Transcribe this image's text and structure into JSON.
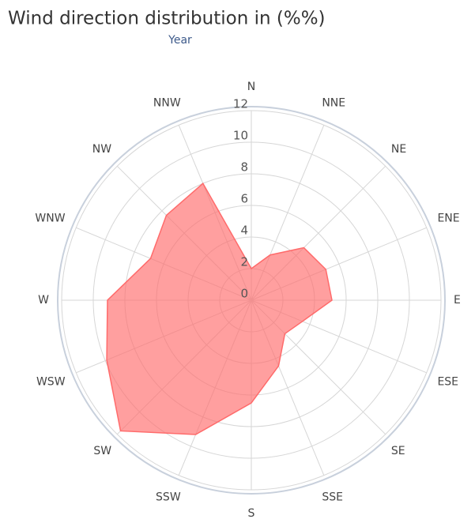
{
  "chart_data": {
    "type": "radar",
    "title": "Wind direction distribution in (%%)",
    "subtitle": "Year",
    "categories": [
      "N",
      "NNE",
      "NE",
      "ENE",
      "E",
      "ESE",
      "SE",
      "SSE",
      "S",
      "SSW",
      "SW",
      "WSW",
      "W",
      "WNW",
      "NW",
      "NNW"
    ],
    "series": [
      {
        "name": "Year",
        "color": "#ff6b6b",
        "values": [
          2,
          3.1,
          4.7,
          5.1,
          5.1,
          3.5,
          3,
          4.5,
          6.5,
          9.2,
          11.7,
          9.9,
          9.1,
          6.9,
          7.6,
          8
        ]
      }
    ],
    "ylim": [
      0,
      12
    ],
    "yticks": [
      0,
      2,
      4,
      6,
      8,
      10,
      12
    ],
    "grid": true
  }
}
